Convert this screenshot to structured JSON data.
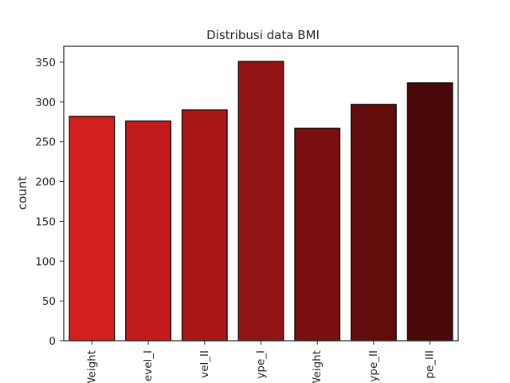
{
  "chart_data": {
    "type": "bar",
    "title": "Distribusi data BMI",
    "xlabel": "",
    "ylabel": "count",
    "categories": [
      "Weight",
      "evel_I",
      "vel_II",
      "ype_I",
      "Weight",
      "ype_II",
      "pe_III"
    ],
    "values": [
      282,
      276,
      290,
      351,
      267,
      297,
      324
    ],
    "colors": [
      "#d41f1f",
      "#c11b1b",
      "#aa1717",
      "#911414",
      "#7a1010",
      "#620c0c",
      "#4a0a0a"
    ],
    "edge_color": "#000000",
    "ylim": [
      0,
      370
    ],
    "yticks": [
      0,
      50,
      100,
      150,
      200,
      250,
      300,
      350
    ],
    "grid": false
  }
}
